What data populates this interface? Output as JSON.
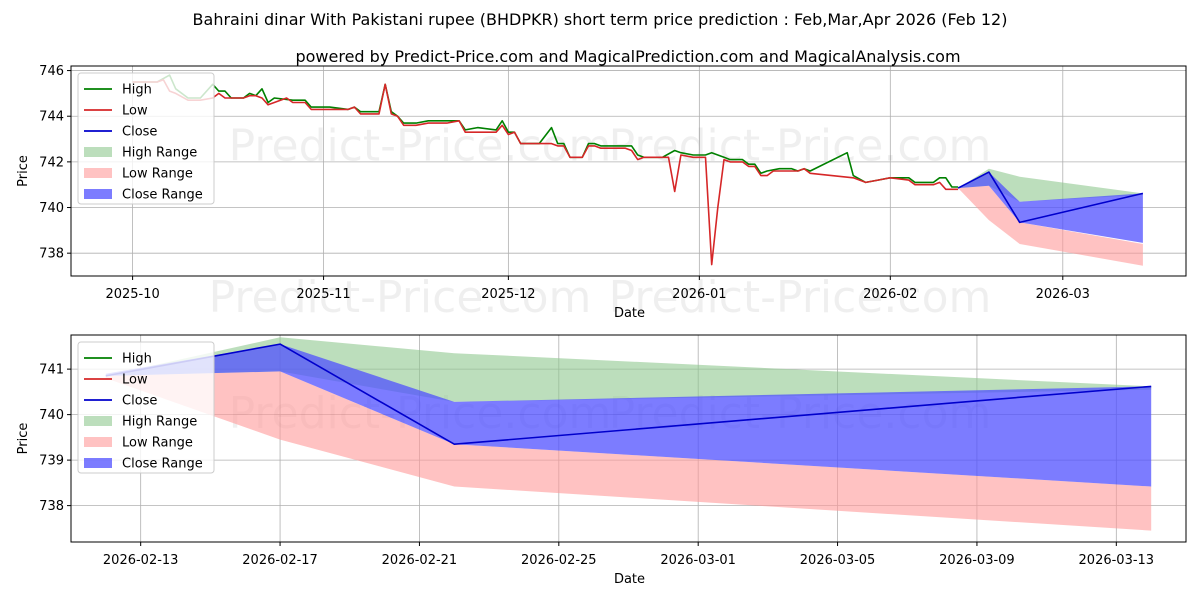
{
  "title": "Bahraini dinar With Pakistani rupee (BHDPKR) short term price prediction : Feb,Mar,Apr 2026 (Feb 12)",
  "subtitle": "powered by Predict-Price.com and MagicalPrediction.com and MagicalAnalysis.com",
  "watermark": "Predict-Price.com",
  "colors": {
    "high": "#008000",
    "low": "#d62728",
    "close": "#0000cc",
    "high_range": "#90c890",
    "low_range": "#ff9a9a",
    "close_range": "#5050ff"
  },
  "chart_data": [
    {
      "type": "line",
      "id": "top",
      "title": "",
      "xlabel": "Date",
      "ylabel": "Price",
      "xlim": [
        "2025-09-21",
        "2026-03-21"
      ],
      "ylim": [
        737.0,
        746.2
      ],
      "x_ticks": [
        {
          "date": "2025-10-01",
          "label": "2025-10"
        },
        {
          "date": "2025-11-01",
          "label": "2025-11"
        },
        {
          "date": "2025-12-01",
          "label": "2025-12"
        },
        {
          "date": "2026-01-01",
          "label": "2026-01"
        },
        {
          "date": "2026-02-01",
          "label": "2026-02"
        },
        {
          "date": "2026-03-01",
          "label": "2026-03"
        }
      ],
      "y_ticks": [
        738,
        740,
        742,
        744,
        746
      ],
      "grid": true,
      "legend": "upper left",
      "legend_entries": [
        "High",
        "Low",
        "Close",
        "High Range",
        "Low Range",
        "Close Range"
      ],
      "series": [
        {
          "name": "High",
          "points": [
            [
              "2025-10-01",
              745.5
            ],
            [
              "2025-10-05",
              745.5
            ],
            [
              "2025-10-07",
              745.8
            ],
            [
              "2025-10-08",
              745.2
            ],
            [
              "2025-10-10",
              744.8
            ],
            [
              "2025-10-12",
              744.8
            ],
            [
              "2025-10-14",
              745.4
            ],
            [
              "2025-10-15",
              745.1
            ],
            [
              "2025-10-16",
              745.1
            ],
            [
              "2025-10-17",
              744.8
            ],
            [
              "2025-10-19",
              744.8
            ],
            [
              "2025-10-20",
              745.0
            ],
            [
              "2025-10-21",
              744.9
            ],
            [
              "2025-10-22",
              745.2
            ],
            [
              "2025-10-23",
              744.6
            ],
            [
              "2025-10-24",
              744.8
            ],
            [
              "2025-10-27",
              744.7
            ],
            [
              "2025-10-29",
              744.7
            ],
            [
              "2025-10-30",
              744.4
            ],
            [
              "2025-11-02",
              744.4
            ],
            [
              "2025-11-05",
              744.3
            ],
            [
              "2025-11-06",
              744.4
            ],
            [
              "2025-11-07",
              744.2
            ],
            [
              "2025-11-10",
              744.2
            ],
            [
              "2025-11-11",
              745.4
            ],
            [
              "2025-11-12",
              744.2
            ],
            [
              "2025-11-13",
              744.0
            ],
            [
              "2025-11-14",
              743.7
            ],
            [
              "2025-11-16",
              743.7
            ],
            [
              "2025-11-18",
              743.8
            ],
            [
              "2025-11-21",
              743.8
            ],
            [
              "2025-11-23",
              743.8
            ],
            [
              "2025-11-24",
              743.4
            ],
            [
              "2025-11-26",
              743.5
            ],
            [
              "2025-11-29",
              743.4
            ],
            [
              "2025-11-30",
              743.8
            ],
            [
              "2025-12-01",
              743.3
            ],
            [
              "2025-12-02",
              743.3
            ],
            [
              "2025-12-03",
              742.8
            ],
            [
              "2025-12-06",
              742.8
            ],
            [
              "2025-12-08",
              743.5
            ],
            [
              "2025-12-09",
              742.8
            ],
            [
              "2025-12-10",
              742.8
            ],
            [
              "2025-12-11",
              742.2
            ],
            [
              "2025-12-13",
              742.2
            ],
            [
              "2025-12-14",
              742.8
            ],
            [
              "2025-12-15",
              742.8
            ],
            [
              "2025-12-16",
              742.7
            ],
            [
              "2025-12-18",
              742.7
            ],
            [
              "2025-12-20",
              742.7
            ],
            [
              "2025-12-21",
              742.7
            ],
            [
              "2025-12-22",
              742.3
            ],
            [
              "2025-12-23",
              742.2
            ],
            [
              "2025-12-26",
              742.2
            ],
            [
              "2025-12-28",
              742.5
            ],
            [
              "2025-12-29",
              742.4
            ],
            [
              "2025-12-31",
              742.3
            ],
            [
              "2026-01-02",
              742.3
            ],
            [
              "2026-01-03",
              742.4
            ],
            [
              "2026-01-04",
              742.3
            ],
            [
              "2026-01-05",
              742.2
            ],
            [
              "2026-01-06",
              742.1
            ],
            [
              "2026-01-08",
              742.1
            ],
            [
              "2026-01-09",
              741.9
            ],
            [
              "2026-01-10",
              741.9
            ],
            [
              "2026-01-11",
              741.5
            ],
            [
              "2026-01-12",
              741.6
            ],
            [
              "2026-01-14",
              741.7
            ],
            [
              "2026-01-16",
              741.7
            ],
            [
              "2026-01-17",
              741.6
            ],
            [
              "2026-01-18",
              741.7
            ],
            [
              "2026-01-19",
              741.6
            ],
            [
              "2026-01-25",
              742.4
            ],
            [
              "2026-01-26",
              741.4
            ],
            [
              "2026-01-28",
              741.1
            ],
            [
              "2026-01-30",
              741.2
            ],
            [
              "2026-02-01",
              741.3
            ],
            [
              "2026-02-03",
              741.3
            ],
            [
              "2026-02-04",
              741.3
            ],
            [
              "2026-02-05",
              741.1
            ],
            [
              "2026-02-08",
              741.1
            ],
            [
              "2026-02-09",
              741.3
            ],
            [
              "2026-02-10",
              741.3
            ],
            [
              "2026-02-11",
              740.9
            ],
            [
              "2026-02-12",
              740.9
            ]
          ]
        },
        {
          "name": "Low",
          "points": [
            [
              "2025-10-01",
              745.5
            ],
            [
              "2025-10-05",
              745.5
            ],
            [
              "2025-10-06",
              745.6
            ],
            [
              "2025-10-07",
              745.1
            ],
            [
              "2025-10-08",
              745.0
            ],
            [
              "2025-10-10",
              744.7
            ],
            [
              "2025-10-12",
              744.7
            ],
            [
              "2025-10-14",
              744.8
            ],
            [
              "2025-10-15",
              745.0
            ],
            [
              "2025-10-16",
              744.8
            ],
            [
              "2025-10-19",
              744.8
            ],
            [
              "2025-10-20",
              744.9
            ],
            [
              "2025-10-21",
              744.9
            ],
            [
              "2025-10-22",
              744.8
            ],
            [
              "2025-10-23",
              744.5
            ],
            [
              "2025-10-24",
              744.6
            ],
            [
              "2025-10-26",
              744.8
            ],
            [
              "2025-10-27",
              744.6
            ],
            [
              "2025-10-29",
              744.6
            ],
            [
              "2025-10-30",
              744.3
            ],
            [
              "2025-11-02",
              744.3
            ],
            [
              "2025-11-05",
              744.3
            ],
            [
              "2025-11-06",
              744.4
            ],
            [
              "2025-11-07",
              744.1
            ],
            [
              "2025-11-10",
              744.1
            ],
            [
              "2025-11-11",
              745.4
            ],
            [
              "2025-11-12",
              744.1
            ],
            [
              "2025-11-13",
              744.0
            ],
            [
              "2025-11-14",
              743.6
            ],
            [
              "2025-11-16",
              743.6
            ],
            [
              "2025-11-18",
              743.7
            ],
            [
              "2025-11-21",
              743.7
            ],
            [
              "2025-11-23",
              743.8
            ],
            [
              "2025-11-24",
              743.3
            ],
            [
              "2025-11-26",
              743.3
            ],
            [
              "2025-11-29",
              743.3
            ],
            [
              "2025-11-30",
              743.6
            ],
            [
              "2025-12-01",
              743.2
            ],
            [
              "2025-12-02",
              743.3
            ],
            [
              "2025-12-03",
              742.8
            ],
            [
              "2025-12-06",
              742.8
            ],
            [
              "2025-12-08",
              742.8
            ],
            [
              "2025-12-09",
              742.7
            ],
            [
              "2025-12-10",
              742.7
            ],
            [
              "2025-12-11",
              742.2
            ],
            [
              "2025-12-13",
              742.2
            ],
            [
              "2025-12-14",
              742.7
            ],
            [
              "2025-12-15",
              742.7
            ],
            [
              "2025-12-16",
              742.6
            ],
            [
              "2025-12-18",
              742.6
            ],
            [
              "2025-12-20",
              742.6
            ],
            [
              "2025-12-21",
              742.5
            ],
            [
              "2025-12-22",
              742.1
            ],
            [
              "2025-12-23",
              742.2
            ],
            [
              "2025-12-26",
              742.2
            ],
            [
              "2025-12-27",
              742.2
            ],
            [
              "2025-12-28",
              740.7
            ],
            [
              "2025-12-29",
              742.3
            ],
            [
              "2025-12-31",
              742.2
            ],
            [
              "2026-01-02",
              742.2
            ],
            [
              "2026-01-03",
              737.5
            ],
            [
              "2026-01-04",
              740.0
            ],
            [
              "2026-01-05",
              742.1
            ],
            [
              "2026-01-06",
              742.0
            ],
            [
              "2026-01-08",
              742.0
            ],
            [
              "2026-01-09",
              741.8
            ],
            [
              "2026-01-10",
              741.8
            ],
            [
              "2026-01-11",
              741.4
            ],
            [
              "2026-01-12",
              741.4
            ],
            [
              "2026-01-13",
              741.6
            ],
            [
              "2026-01-16",
              741.6
            ],
            [
              "2026-01-17",
              741.6
            ],
            [
              "2026-01-18",
              741.7
            ],
            [
              "2026-01-19",
              741.5
            ],
            [
              "2026-01-26",
              741.3
            ],
            [
              "2026-01-28",
              741.1
            ],
            [
              "2026-01-30",
              741.2
            ],
            [
              "2026-02-01",
              741.3
            ],
            [
              "2026-02-04",
              741.2
            ],
            [
              "2026-02-05",
              741.0
            ],
            [
              "2026-02-08",
              741.0
            ],
            [
              "2026-02-09",
              741.1
            ],
            [
              "2026-02-10",
              740.8
            ],
            [
              "2026-02-12",
              740.8
            ]
          ]
        },
        {
          "name": "Close",
          "points": [
            [
              "2026-02-12",
              740.85
            ],
            [
              "2026-02-17",
              741.55
            ],
            [
              "2026-02-22",
              739.35
            ],
            [
              "2026-03-14",
              740.62
            ]
          ]
        }
      ],
      "ranges": [
        {
          "name": "High Range",
          "points": [
            [
              "2026-02-12",
              740.85,
              740.85
            ],
            [
              "2026-02-17",
              740.95,
              741.7
            ],
            [
              "2026-02-22",
              740.25,
              741.35
            ],
            [
              "2026-03-14",
              740.55,
              740.62
            ]
          ]
        },
        {
          "name": "Low Range",
          "points": [
            [
              "2026-02-12",
              740.85,
              740.85
            ],
            [
              "2026-02-17",
              739.45,
              740.95
            ],
            [
              "2026-02-22",
              738.4,
              739.35
            ],
            [
              "2026-03-14",
              737.45,
              738.4
            ]
          ]
        },
        {
          "name": "Close Range",
          "points": [
            [
              "2026-02-12",
              740.85,
              740.85
            ],
            [
              "2026-02-17",
              740.95,
              741.55
            ],
            [
              "2026-02-22",
              739.35,
              740.25
            ],
            [
              "2026-03-14",
              738.45,
              740.62
            ]
          ]
        }
      ]
    },
    {
      "type": "line",
      "id": "bottom",
      "title": "",
      "xlabel": "Date",
      "ylabel": "Price",
      "xlim": [
        "2026-02-11",
        "2026-03-15"
      ],
      "ylim": [
        737.2,
        741.75
      ],
      "x_ticks": [
        {
          "date": "2026-02-13",
          "label": "2026-02-13"
        },
        {
          "date": "2026-02-17",
          "label": "2026-02-17"
        },
        {
          "date": "2026-02-21",
          "label": "2026-02-21"
        },
        {
          "date": "2026-02-25",
          "label": "2026-02-25"
        },
        {
          "date": "2026-03-01",
          "label": "2026-03-01"
        },
        {
          "date": "2026-03-05",
          "label": "2026-03-05"
        },
        {
          "date": "2026-03-09",
          "label": "2026-03-09"
        },
        {
          "date": "2026-03-13",
          "label": "2026-03-13"
        }
      ],
      "y_ticks": [
        738,
        739,
        740,
        741
      ],
      "grid": true,
      "legend": "upper left",
      "legend_entries": [
        "High",
        "Low",
        "Close",
        "High Range",
        "Low Range",
        "Close Range"
      ],
      "series": [
        {
          "name": "High",
          "points": []
        },
        {
          "name": "Low",
          "points": []
        },
        {
          "name": "Close",
          "points": [
            [
              "2026-02-12",
              740.85
            ],
            [
              "2026-02-17",
              741.55
            ],
            [
              "2026-02-22",
              739.35
            ],
            [
              "2026-03-14",
              740.62
            ]
          ]
        }
      ],
      "ranges": [
        {
          "name": "High Range",
          "points": [
            [
              "2026-02-12",
              740.85,
              740.85
            ],
            [
              "2026-02-17",
              740.95,
              741.7
            ],
            [
              "2026-02-22",
              740.28,
              741.35
            ],
            [
              "2026-03-14",
              740.55,
              740.62
            ]
          ]
        },
        {
          "name": "Low Range",
          "points": [
            [
              "2026-02-12",
              740.8,
              740.85
            ],
            [
              "2026-02-17",
              739.45,
              740.95
            ],
            [
              "2026-02-22",
              738.42,
              739.35
            ],
            [
              "2026-03-14",
              737.45,
              738.42
            ]
          ]
        },
        {
          "name": "Close Range",
          "points": [
            [
              "2026-02-12",
              740.85,
              740.9
            ],
            [
              "2026-02-17",
              740.95,
              741.55
            ],
            [
              "2026-02-22",
              739.35,
              740.28
            ],
            [
              "2026-03-14",
              738.42,
              740.62
            ]
          ]
        }
      ]
    }
  ]
}
